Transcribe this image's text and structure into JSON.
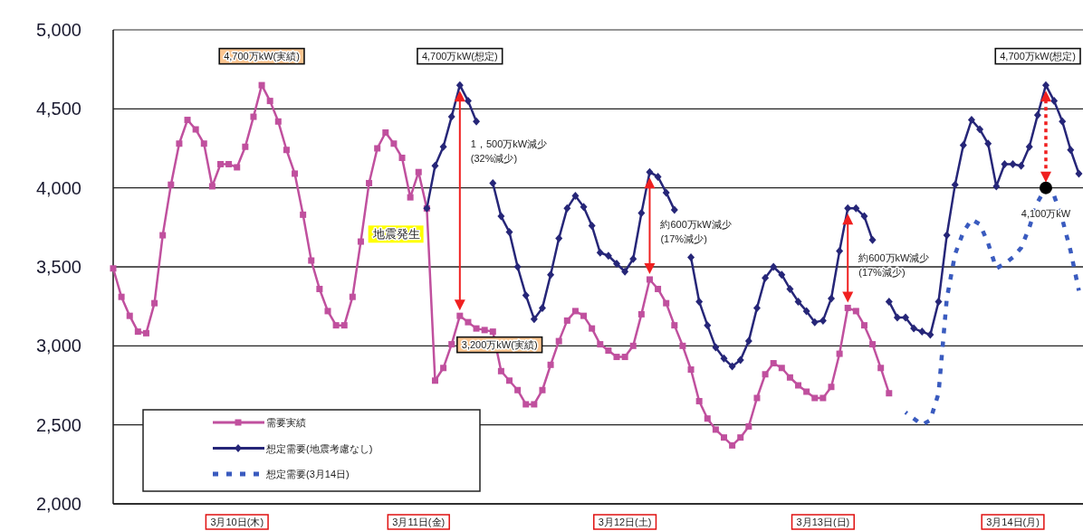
{
  "chart_data": {
    "type": "line",
    "categories": [
      null,
      null,
      null,
      null,
      null,
      null,
      null,
      null,
      null,
      null,
      null,
      null,
      null,
      null,
      null,
      "3月10日(木)",
      null,
      null,
      null,
      null,
      null,
      null,
      null,
      null,
      null,
      null,
      null,
      null,
      null,
      null,
      null,
      null,
      null,
      null,
      null,
      null,
      null,
      "3月11日(金)",
      null,
      null,
      null,
      null,
      null,
      null,
      null,
      null,
      null,
      null,
      null,
      null,
      null,
      null,
      null,
      null,
      null,
      null,
      null,
      null,
      null,
      null,
      null,
      null,
      "3月12日(土)",
      null,
      null,
      null,
      null,
      null,
      null,
      null,
      null,
      null,
      null,
      null,
      null,
      null,
      null,
      null,
      null,
      null,
      null,
      null,
      null,
      null,
      null,
      null,
      "3月13日(日)",
      null,
      null,
      null,
      null,
      null,
      null,
      null,
      null,
      null,
      null,
      null,
      null,
      null,
      null,
      null,
      null,
      null,
      null,
      null,
      null,
      null,
      null,
      "3月14日(月)",
      null,
      null,
      null,
      null,
      null,
      null,
      null,
      null
    ],
    "ylim": [
      2000,
      5000
    ],
    "yticks": [
      {
        "value": 2000,
        "label": "2,000"
      },
      {
        "value": 2500,
        "label": "2,500"
      },
      {
        "value": 3000,
        "label": "3,000"
      },
      {
        "value": 3500,
        "label": "3,500"
      },
      {
        "value": 4000,
        "label": "4,000"
      },
      {
        "value": 4500,
        "label": "4,500"
      },
      {
        "value": 5000,
        "label": "5,000"
      }
    ],
    "grid": "y",
    "legend": "bottom left",
    "series": [
      {
        "name": "需要実績",
        "color": "#c0509e",
        "marker": "square",
        "line_style": "solid",
        "values": [
          3490,
          3310,
          3190,
          3090,
          3080,
          3270,
          3700,
          4020,
          4280,
          4430,
          4370,
          4280,
          4010,
          4150,
          4150,
          4130,
          4260,
          4450,
          4650,
          4550,
          4420,
          4240,
          4090,
          3830,
          3540,
          3360,
          3220,
          3130,
          3130,
          3310,
          3660,
          4030,
          4250,
          4350,
          4280,
          4190,
          3940,
          4100,
          3870,
          2780,
          2860,
          3010,
          3190,
          3150,
          3110,
          3100,
          3090,
          2840,
          2780,
          2720,
          2630,
          2630,
          2720,
          2880,
          3030,
          3160,
          3220,
          3190,
          3110,
          3010,
          2970,
          2930,
          2930,
          3000,
          3200,
          3420,
          3360,
          3270,
          3130,
          3000,
          2850,
          2650,
          2540,
          2470,
          2420,
          2370,
          2420,
          2490,
          2670,
          2820,
          2890,
          2860,
          2800,
          2750,
          2710,
          2670,
          2670,
          2740,
          2950,
          3240,
          3220,
          3130,
          3010,
          2860,
          2700,
          null,
          null,
          null,
          null,
          null,
          null,
          null,
          null,
          null,
          null,
          null,
          null,
          null,
          null,
          null,
          null,
          null,
          null,
          null,
          null,
          null,
          null,
          null
        ]
      },
      {
        "name": "想定需要(地震考慮なし)",
        "color": "#262678",
        "marker": "diamond",
        "line_style": "solid",
        "values": [
          null,
          null,
          null,
          null,
          null,
          null,
          null,
          null,
          null,
          null,
          null,
          null,
          null,
          null,
          null,
          null,
          null,
          null,
          null,
          null,
          null,
          null,
          null,
          null,
          null,
          null,
          null,
          null,
          null,
          null,
          null,
          null,
          null,
          null,
          null,
          null,
          null,
          null,
          3870,
          4140,
          4260,
          4450,
          4650,
          4550,
          4420,
          null,
          4030,
          3820,
          3720,
          3500,
          3320,
          3170,
          3240,
          3450,
          3680,
          3870,
          3950,
          3880,
          3760,
          3590,
          3570,
          3520,
          3470,
          3550,
          3840,
          4100,
          4070,
          3970,
          3860,
          null,
          3560,
          3280,
          3130,
          2990,
          2920,
          2870,
          2910,
          3030,
          3240,
          3430,
          3500,
          3450,
          3360,
          3280,
          3220,
          3150,
          3160,
          3300,
          3600,
          3870,
          3870,
          3820,
          3670,
          null,
          3280,
          3180,
          3180,
          3110,
          3090,
          3070,
          3280,
          3700,
          4020,
          4270,
          4430,
          4370,
          4280,
          4010,
          4150,
          4150,
          4140,
          4260,
          4460,
          4650,
          4550,
          4420,
          4240,
          4090
        ]
      },
      {
        "name": "想定需要(3月14日)",
        "color": "#3a5bbf",
        "marker": "none",
        "line_style": "dotted",
        "values": [
          null,
          null,
          null,
          null,
          null,
          null,
          null,
          null,
          null,
          null,
          null,
          null,
          null,
          null,
          null,
          null,
          null,
          null,
          null,
          null,
          null,
          null,
          null,
          null,
          null,
          null,
          null,
          null,
          null,
          null,
          null,
          null,
          null,
          null,
          null,
          null,
          null,
          null,
          null,
          null,
          null,
          null,
          null,
          null,
          null,
          null,
          null,
          null,
          null,
          null,
          null,
          null,
          null,
          null,
          null,
          null,
          null,
          null,
          null,
          null,
          null,
          null,
          null,
          null,
          null,
          null,
          null,
          null,
          null,
          null,
          null,
          null,
          null,
          null,
          null,
          null,
          null,
          null,
          null,
          null,
          null,
          null,
          null,
          null,
          null,
          null,
          null,
          null,
          null,
          null,
          null,
          null,
          null,
          null,
          null,
          null,
          2580,
          2540,
          2500,
          2530,
          2700,
          3300,
          3580,
          3720,
          3800,
          3770,
          3650,
          3490,
          3520,
          3560,
          3620,
          3750,
          3910,
          4000,
          3950,
          3800,
          3600,
          3350
        ]
      }
    ],
    "annotations": [
      "4,700万kW(実績)",
      "4,700万kW(想定)",
      "3,200万kW(実績)",
      "1，500万kW減少\n(32%減少)",
      "約600万kW減少\n(17%減少)",
      "約600万kW減少\n(17%減少)",
      "4,700万kW(想定)",
      "4,100万kW",
      "地震発生"
    ]
  }
}
